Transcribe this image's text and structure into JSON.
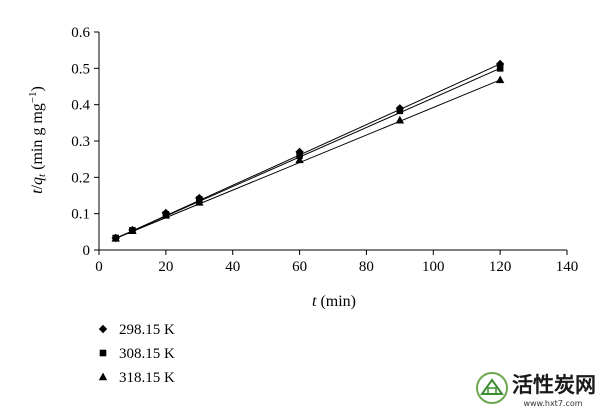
{
  "chart_data": {
    "type": "line",
    "xlabel": "t (min)",
    "ylabel": "t/q_t (min g mg^-1)",
    "xlim": [
      0,
      140
    ],
    "ylim": [
      0,
      0.6
    ],
    "xticks": [
      "0",
      "20",
      "40",
      "60",
      "80",
      "100",
      "120",
      "140"
    ],
    "yticks": [
      "0",
      "0.1",
      "0.2",
      "0.3",
      "0.4",
      "0.5",
      "0.6"
    ],
    "grid": false,
    "legend_position": "bottom-left",
    "x": [
      5,
      10,
      20,
      30,
      60,
      90,
      120
    ],
    "series": [
      {
        "name": "298.15 K",
        "marker": "diamond",
        "values": [
          0.033,
          0.055,
          0.102,
          0.143,
          0.27,
          0.39,
          0.512
        ],
        "fit": [
          0.032,
          0.512
        ]
      },
      {
        "name": "308.15 K",
        "marker": "square",
        "values": [
          0.033,
          0.054,
          0.098,
          0.139,
          0.26,
          0.383,
          0.5
        ],
        "fit": [
          0.032,
          0.5
        ]
      },
      {
        "name": "318.15 K",
        "marker": "triangle",
        "values": [
          0.032,
          0.053,
          0.095,
          0.131,
          0.248,
          0.357,
          0.468
        ],
        "fit": [
          0.032,
          0.468
        ]
      }
    ]
  },
  "legend": {
    "items": [
      {
        "label": "298.15 K",
        "marker": "diamond"
      },
      {
        "label": "308.15 K",
        "marker": "square"
      },
      {
        "label": "318.15 K",
        "marker": "triangle"
      }
    ]
  },
  "watermark": {
    "logo_text": "活性炭网",
    "url": "www.hxt7.com"
  }
}
